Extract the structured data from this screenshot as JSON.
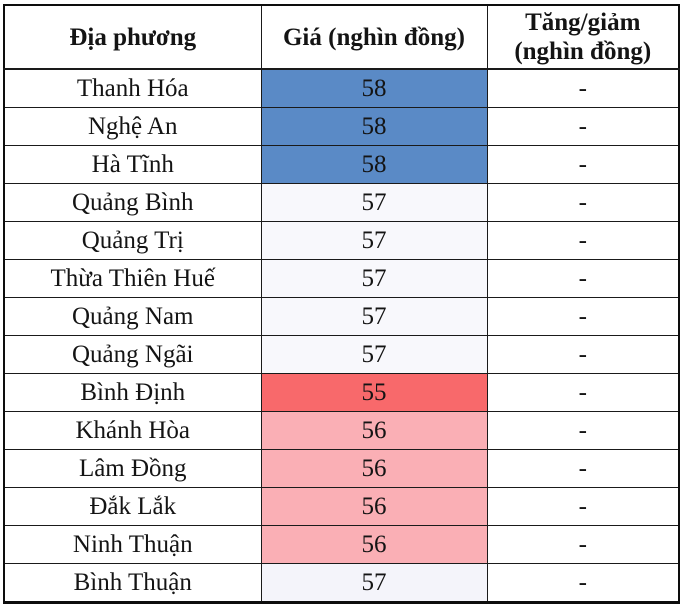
{
  "chart_data": {
    "type": "table",
    "title": "",
    "columns": [
      "Địa phương",
      "Giá (nghìn đồng)",
      "Tăng/giảm (nghìn đồng)"
    ],
    "rows": [
      {
        "province": "Thanh Hóa",
        "price": "58",
        "change": "-",
        "price_bg": "#5A8AC6"
      },
      {
        "province": "Nghệ An",
        "price": "58",
        "change": "-",
        "price_bg": "#5A8AC6"
      },
      {
        "province": "Hà Tĩnh",
        "price": "58",
        "change": "-",
        "price_bg": "#5A8AC6"
      },
      {
        "province": "Quảng Bình",
        "price": "57",
        "change": "-",
        "price_bg": "#F8F8FC"
      },
      {
        "province": "Quảng Trị",
        "price": "57",
        "change": "-",
        "price_bg": "#F8F8FC"
      },
      {
        "province": "Thừa Thiên Huế",
        "price": "57",
        "change": "-",
        "price_bg": "#F8F8FC"
      },
      {
        "province": "Quảng Nam",
        "price": "57",
        "change": "-",
        "price_bg": "#F8F8FC"
      },
      {
        "province": "Quảng Ngãi",
        "price": "57",
        "change": "-",
        "price_bg": "#F8F8FC"
      },
      {
        "province": "Bình Định",
        "price": "55",
        "change": "-",
        "price_bg": "#F8696B"
      },
      {
        "province": "Khánh Hòa",
        "price": "56",
        "change": "-",
        "price_bg": "#FAAFB5"
      },
      {
        "province": "Lâm Đồng",
        "price": "56",
        "change": "-",
        "price_bg": "#FAAFB5"
      },
      {
        "province": "Đắk Lắk",
        "price": "56",
        "change": "-",
        "price_bg": "#FAAFB5"
      },
      {
        "province": "Ninh Thuận",
        "price": "56",
        "change": "-",
        "price_bg": "#FAAFB5"
      },
      {
        "province": "Bình Thuận",
        "price": "57",
        "change": "-",
        "price_bg": "#F4F4FA"
      }
    ],
    "value_scale": {
      "min_value": 55,
      "max_value": 58,
      "min_color": "#F8696B",
      "mid_color": "#FCFCFF",
      "max_color": "#5A8AC6"
    },
    "colors": {
      "grid": "#1a1a1a",
      "text": "#141414",
      "background": "#FFFFFF"
    }
  }
}
